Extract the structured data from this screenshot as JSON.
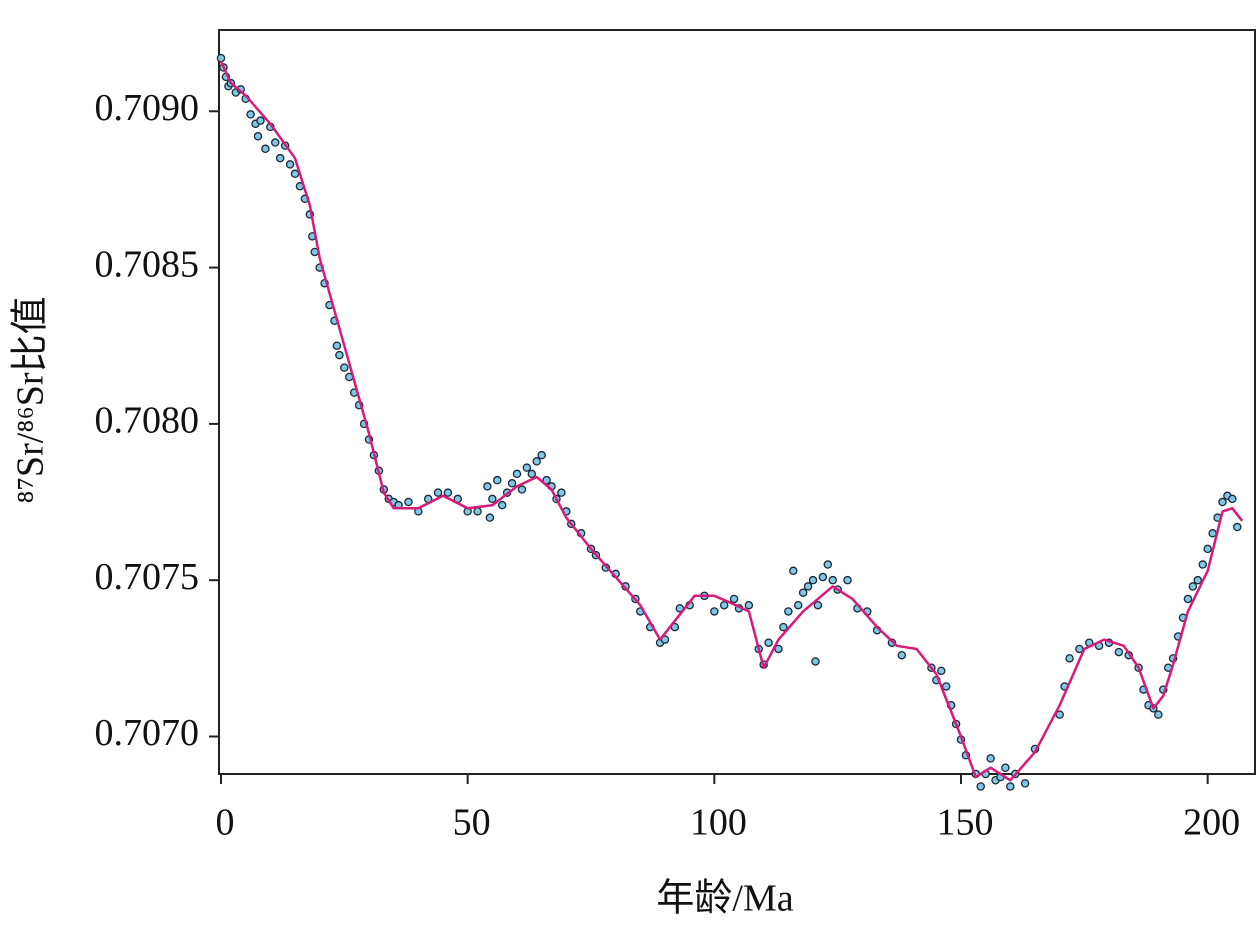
{
  "chart_data": {
    "type": "scatter",
    "xlabel": "年龄/Ma",
    "ylabel": "⁸⁷Sr/⁸⁶Sr比值",
    "xlim": [
      0,
      210
    ],
    "xticks": [
      0,
      50,
      100,
      150,
      200
    ],
    "ylim": [
      0.70688,
      0.70926
    ],
    "yticks": [
      {
        "value": 0.707,
        "label": "0.7070"
      },
      0.7075,
      {
        "value": 0.708,
        "label": "0.7080"
      },
      0.7085,
      {
        "value": 0.709,
        "label": "0.7090"
      }
    ],
    "points": {
      "color": "#7ec8e3",
      "x": [
        0,
        0.5,
        1,
        1.5,
        2,
        3,
        4,
        5,
        6,
        7,
        7.5,
        8,
        9,
        10,
        11,
        12,
        13,
        14,
        15,
        16,
        17,
        18,
        18.5,
        19,
        20,
        21,
        22,
        23,
        23.5,
        24,
        25,
        26,
        27,
        28,
        29,
        30,
        31,
        32,
        33,
        34,
        35,
        36,
        38,
        40,
        42,
        44,
        46,
        48,
        50,
        52,
        54,
        54.5,
        55,
        56,
        57,
        58,
        59,
        60,
        61,
        62,
        63,
        64,
        65,
        66,
        67,
        68,
        69,
        70,
        71,
        73,
        75,
        76,
        78,
        80,
        82,
        84,
        85,
        87,
        89,
        90,
        92,
        93,
        95,
        98,
        100,
        102,
        104,
        105,
        107,
        109,
        110,
        111,
        113,
        114,
        115,
        116,
        117,
        118,
        119,
        120,
        120.5,
        121,
        122,
        123,
        124,
        125,
        127,
        129,
        131,
        133,
        136,
        138,
        144,
        145,
        146,
        147,
        148,
        149,
        150,
        151,
        153,
        154,
        155,
        156,
        157,
        158,
        159,
        160,
        161,
        163,
        165,
        170,
        171,
        172,
        174,
        176,
        178,
        180,
        182,
        184,
        186,
        187,
        188,
        189,
        190,
        191,
        192,
        193,
        194,
        195,
        196,
        197,
        198,
        199,
        200,
        201,
        202,
        203,
        204,
        205,
        206
      ],
      "values": [
        0.70917,
        0.70914,
        0.70911,
        0.70908,
        0.70909,
        0.70906,
        0.70907,
        0.70904,
        0.70899,
        0.70896,
        0.70892,
        0.70897,
        0.70888,
        0.70895,
        0.7089,
        0.70885,
        0.70889,
        0.70883,
        0.7088,
        0.70876,
        0.70872,
        0.70867,
        0.7086,
        0.70855,
        0.7085,
        0.70845,
        0.70838,
        0.70833,
        0.70825,
        0.70822,
        0.70818,
        0.70815,
        0.7081,
        0.70806,
        0.708,
        0.70795,
        0.7079,
        0.70785,
        0.70779,
        0.70776,
        0.70775,
        0.70774,
        0.70775,
        0.70772,
        0.70776,
        0.70778,
        0.70778,
        0.70776,
        0.70772,
        0.70772,
        0.7078,
        0.7077,
        0.70776,
        0.70782,
        0.70774,
        0.70778,
        0.70781,
        0.70784,
        0.70779,
        0.70786,
        0.70784,
        0.70788,
        0.7079,
        0.70782,
        0.7078,
        0.70776,
        0.70778,
        0.70772,
        0.70768,
        0.70765,
        0.7076,
        0.70758,
        0.70754,
        0.70752,
        0.70748,
        0.70744,
        0.7074,
        0.70735,
        0.7073,
        0.70731,
        0.70735,
        0.70741,
        0.70742,
        0.70745,
        0.7074,
        0.70742,
        0.70744,
        0.70741,
        0.70742,
        0.70728,
        0.70723,
        0.7073,
        0.70728,
        0.70735,
        0.7074,
        0.70753,
        0.70742,
        0.70746,
        0.70748,
        0.7075,
        0.70724,
        0.70742,
        0.70751,
        0.70755,
        0.7075,
        0.70747,
        0.7075,
        0.70741,
        0.7074,
        0.70734,
        0.7073,
        0.70726,
        0.70722,
        0.70718,
        0.70721,
        0.70716,
        0.7071,
        0.70704,
        0.70699,
        0.70694,
        0.70688,
        0.70684,
        0.70688,
        0.70693,
        0.70686,
        0.70687,
        0.7069,
        0.70684,
        0.70688,
        0.70685,
        0.70696,
        0.70707,
        0.70716,
        0.70725,
        0.70728,
        0.7073,
        0.70729,
        0.7073,
        0.70727,
        0.70726,
        0.70722,
        0.70715,
        0.7071,
        0.70709,
        0.70707,
        0.70715,
        0.70722,
        0.70725,
        0.70732,
        0.70738,
        0.70744,
        0.70748,
        0.7075,
        0.70755,
        0.7076,
        0.70765,
        0.7077,
        0.70775,
        0.70777,
        0.70776,
        0.70767
      ]
    },
    "curve": {
      "color": "#d81b7a",
      "x": [
        0,
        2,
        5,
        10,
        15,
        18,
        20,
        25,
        30,
        33,
        35,
        40,
        45,
        50,
        55,
        60,
        64,
        67,
        70,
        75,
        80,
        85,
        89,
        92,
        96,
        100,
        103,
        107,
        110,
        113,
        118,
        124,
        128,
        133,
        137,
        141,
        145,
        150,
        153,
        156,
        160,
        165,
        170,
        175,
        179,
        183,
        186,
        189,
        191,
        193,
        196,
        200,
        203,
        205,
        207
      ],
      "values": [
        0.70916,
        0.70909,
        0.70905,
        0.70896,
        0.70885,
        0.7087,
        0.70853,
        0.70825,
        0.70797,
        0.70778,
        0.70773,
        0.70773,
        0.70777,
        0.70773,
        0.70774,
        0.7078,
        0.70783,
        0.70779,
        0.7077,
        0.7076,
        0.70751,
        0.70742,
        0.70731,
        0.70737,
        0.70745,
        0.70745,
        0.70743,
        0.7074,
        0.70722,
        0.70731,
        0.7074,
        0.70748,
        0.70744,
        0.70735,
        0.70729,
        0.70728,
        0.7072,
        0.707,
        0.70687,
        0.7069,
        0.70686,
        0.70695,
        0.7071,
        0.70728,
        0.70731,
        0.70729,
        0.70722,
        0.70709,
        0.70713,
        0.70723,
        0.7074,
        0.70753,
        0.70772,
        0.70773,
        0.70769
      ]
    }
  }
}
